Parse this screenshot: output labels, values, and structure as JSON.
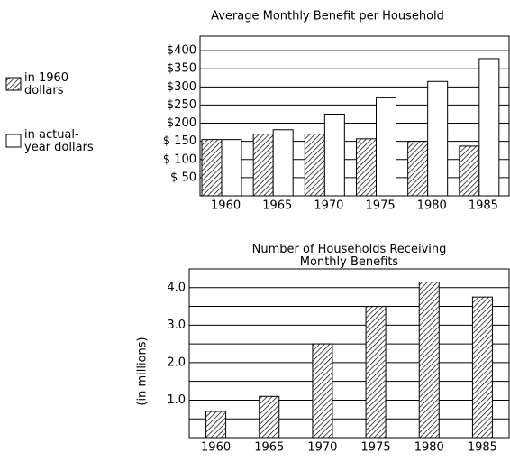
{
  "chart_data": [
    {
      "type": "bar",
      "title": "Average Monthly Benefit per Household",
      "categories": [
        "1960",
        "1965",
        "1970",
        "1975",
        "1980",
        "1985"
      ],
      "series": [
        {
          "name": "in 1960 dollars",
          "color": "#000000",
          "pattern": "diagonal",
          "values": [
            155,
            170,
            170,
            157,
            150,
            137
          ]
        },
        {
          "name": "in actual-year dollars",
          "color": "#ffffff",
          "values": [
            155,
            182,
            225,
            270,
            315,
            378
          ]
        }
      ],
      "ylim": [
        0,
        440
      ],
      "yticks": [
        {
          "value": 50,
          "label": "$ 50"
        },
        {
          "value": 100,
          "label": "$ 100"
        },
        {
          "value": 150,
          "label": "$ 150"
        },
        {
          "value": 200,
          "label": "$200"
        },
        {
          "value": 250,
          "label": "$250"
        },
        {
          "value": 300,
          "label": "$300"
        },
        {
          "value": 350,
          "label": "$350"
        },
        {
          "value": 400,
          "label": "$400"
        }
      ],
      "grid": true,
      "legend": "left"
    },
    {
      "type": "bar",
      "title": "Number of Households Receiving Monthly Benefits",
      "ylabel": "(in millions)",
      "categories": [
        "1960",
        "1965",
        "1970",
        "1975",
        "1980",
        "1985"
      ],
      "values": [
        0.7,
        1.1,
        2.5,
        3.5,
        4.15,
        3.75
      ],
      "color": "#000000",
      "pattern": "diagonal",
      "ylim": [
        0,
        4.5
      ],
      "yticks": [
        {
          "value": 1,
          "label": "1.0"
        },
        {
          "value": 2,
          "label": "2.0"
        },
        {
          "value": 3,
          "label": "3.0"
        },
        {
          "value": 4,
          "label": "4.0"
        }
      ],
      "minor_yticks": [
        0.5,
        1.5,
        2.5,
        3.5
      ],
      "grid": true
    }
  ]
}
